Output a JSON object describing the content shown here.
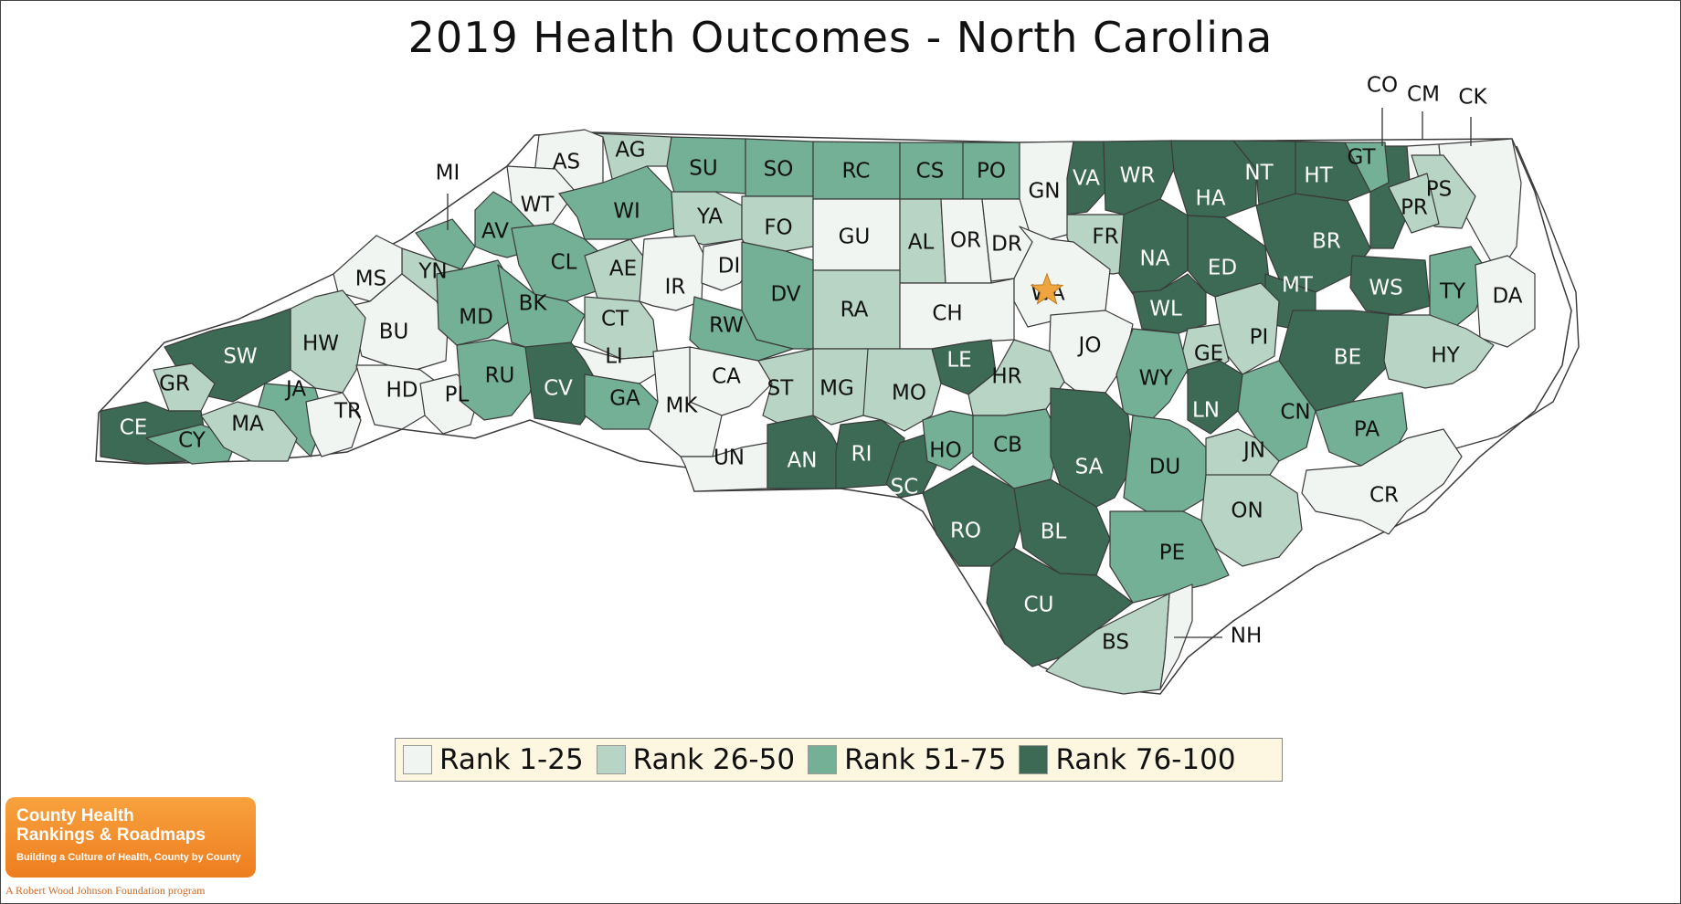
{
  "title": "2019 Health Outcomes - North Carolina",
  "colors": {
    "rank_1_25": "#f1f5f2",
    "rank_26_50": "#b7d4c4",
    "rank_51_75": "#74b095",
    "rank_76_100": "#3c6a54",
    "star": "#f0a640"
  },
  "legend": [
    {
      "label": "Rank 1-25",
      "tier": 1
    },
    {
      "label": "Rank 26-50",
      "tier": 2
    },
    {
      "label": "Rank 51-75",
      "tier": 3
    },
    {
      "label": "Rank 76-100",
      "tier": 4
    }
  ],
  "counties": [
    {
      "code": "AS",
      "tier": 1
    },
    {
      "code": "AG",
      "tier": 2
    },
    {
      "code": "SU",
      "tier": 3
    },
    {
      "code": "SO",
      "tier": 3
    },
    {
      "code": "RC",
      "tier": 3
    },
    {
      "code": "CS",
      "tier": 3
    },
    {
      "code": "PO",
      "tier": 3
    },
    {
      "code": "GN",
      "tier": 1
    },
    {
      "code": "VA",
      "tier": 4
    },
    {
      "code": "WR",
      "tier": 4
    },
    {
      "code": "HA",
      "tier": 4
    },
    {
      "code": "NT",
      "tier": 4
    },
    {
      "code": "HT",
      "tier": 4
    },
    {
      "code": "GT",
      "tier": 3
    },
    {
      "code": "CO",
      "tier": 4
    },
    {
      "code": "CM",
      "tier": 1
    },
    {
      "code": "CK",
      "tier": 1
    },
    {
      "code": "PS",
      "tier": 2
    },
    {
      "code": "PR",
      "tier": 2
    },
    {
      "code": "WT",
      "tier": 1
    },
    {
      "code": "WI",
      "tier": 3
    },
    {
      "code": "YA",
      "tier": 2
    },
    {
      "code": "FO",
      "tier": 2
    },
    {
      "code": "GU",
      "tier": 1
    },
    {
      "code": "AL",
      "tier": 2
    },
    {
      "code": "OR",
      "tier": 1
    },
    {
      "code": "DR",
      "tier": 1
    },
    {
      "code": "FR",
      "tier": 2
    },
    {
      "code": "NA",
      "tier": 4
    },
    {
      "code": "ED",
      "tier": 4
    },
    {
      "code": "BR",
      "tier": 4
    },
    {
      "code": "MT",
      "tier": 4
    },
    {
      "code": "WS",
      "tier": 4
    },
    {
      "code": "TY",
      "tier": 3
    },
    {
      "code": "DA",
      "tier": 1
    },
    {
      "code": "MI",
      "tier": 3
    },
    {
      "code": "AV",
      "tier": 3
    },
    {
      "code": "YN",
      "tier": 2
    },
    {
      "code": "MS",
      "tier": 1
    },
    {
      "code": "CL",
      "tier": 3
    },
    {
      "code": "AE",
      "tier": 2
    },
    {
      "code": "IR",
      "tier": 1
    },
    {
      "code": "DI",
      "tier": 1
    },
    {
      "code": "DV",
      "tier": 3
    },
    {
      "code": "RA",
      "tier": 2
    },
    {
      "code": "CH",
      "tier": 1
    },
    {
      "code": "WA",
      "tier": 1
    },
    {
      "code": "JO",
      "tier": 1
    },
    {
      "code": "WL",
      "tier": 4
    },
    {
      "code": "PI",
      "tier": 2
    },
    {
      "code": "BE",
      "tier": 4
    },
    {
      "code": "HY",
      "tier": 2
    },
    {
      "code": "BU",
      "tier": 1
    },
    {
      "code": "MD",
      "tier": 3
    },
    {
      "code": "BK",
      "tier": 3
    },
    {
      "code": "CT",
      "tier": 2
    },
    {
      "code": "RW",
      "tier": 3
    },
    {
      "code": "LI",
      "tier": 1
    },
    {
      "code": "LE",
      "tier": 4
    },
    {
      "code": "GE",
      "tier": 2
    },
    {
      "code": "HW",
      "tier": 2
    },
    {
      "code": "SW",
      "tier": 4
    },
    {
      "code": "GR",
      "tier": 2
    },
    {
      "code": "JA",
      "tier": 3
    },
    {
      "code": "CE",
      "tier": 4
    },
    {
      "code": "CY",
      "tier": 3
    },
    {
      "code": "MA",
      "tier": 2
    },
    {
      "code": "TR",
      "tier": 1
    },
    {
      "code": "HD",
      "tier": 1
    },
    {
      "code": "PL",
      "tier": 1
    },
    {
      "code": "RU",
      "tier": 3
    },
    {
      "code": "CV",
      "tier": 4
    },
    {
      "code": "GA",
      "tier": 3
    },
    {
      "code": "CA",
      "tier": 1
    },
    {
      "code": "MK",
      "tier": 1
    },
    {
      "code": "ST",
      "tier": 2
    },
    {
      "code": "MG",
      "tier": 2
    },
    {
      "code": "MO",
      "tier": 2
    },
    {
      "code": "HR",
      "tier": 2
    },
    {
      "code": "WY",
      "tier": 3
    },
    {
      "code": "LN",
      "tier": 4
    },
    {
      "code": "CN",
      "tier": 3
    },
    {
      "code": "PA",
      "tier": 3
    },
    {
      "code": "UN",
      "tier": 1
    },
    {
      "code": "AN",
      "tier": 4
    },
    {
      "code": "RI",
      "tier": 4
    },
    {
      "code": "SC",
      "tier": 4
    },
    {
      "code": "HO",
      "tier": 3
    },
    {
      "code": "CB",
      "tier": 3
    },
    {
      "code": "SA",
      "tier": 4
    },
    {
      "code": "DU",
      "tier": 3
    },
    {
      "code": "JN",
      "tier": 2
    },
    {
      "code": "CR",
      "tier": 1
    },
    {
      "code": "RO",
      "tier": 4
    },
    {
      "code": "BL",
      "tier": 4
    },
    {
      "code": "ON",
      "tier": 2
    },
    {
      "code": "PE",
      "tier": 3
    },
    {
      "code": "CU",
      "tier": 4
    },
    {
      "code": "BS",
      "tier": 2
    },
    {
      "code": "NH",
      "tier": 1
    }
  ],
  "logo": {
    "line1": "County Health",
    "line2": "Rankings & Roadmaps",
    "tagline": "Building a Culture of Health, County by County",
    "sub": "A Robert Wood Johnson Foundation program"
  }
}
